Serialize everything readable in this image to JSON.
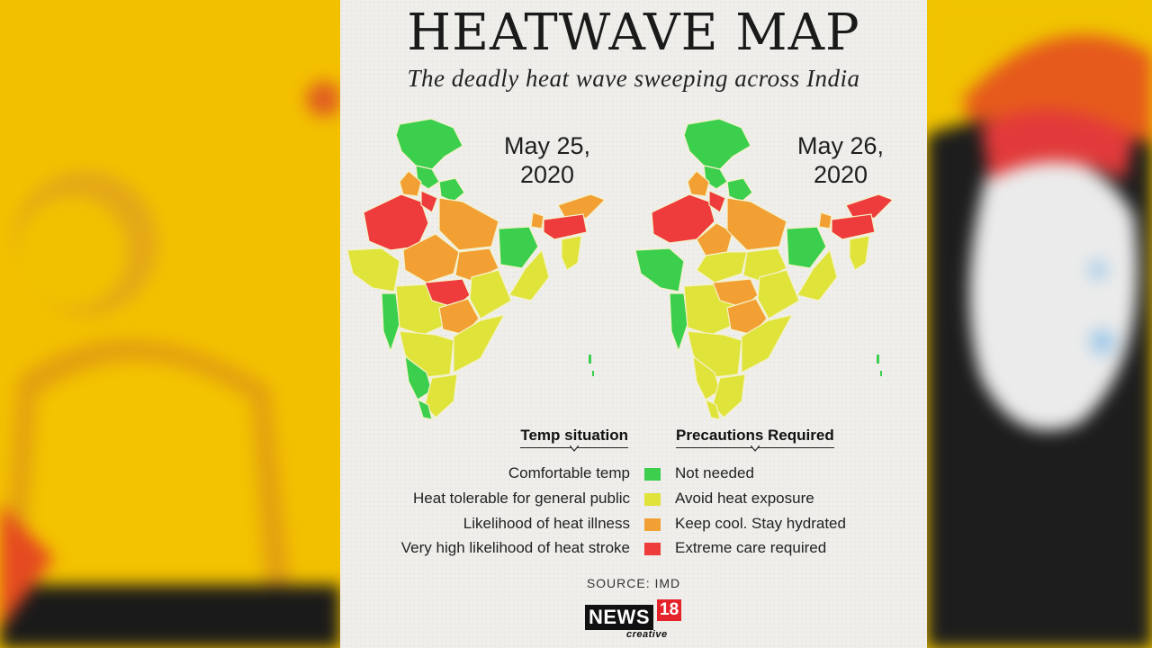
{
  "title": "HEATWAVE MAP",
  "subtitle": "The deadly heat wave sweeping across India",
  "maps": [
    {
      "date_line1": "May 25,",
      "date_line2": "2020"
    },
    {
      "date_line1": "May 26,",
      "date_line2": "2020"
    }
  ],
  "legend": {
    "left_header": "Temp situation",
    "right_header": "Precautions Required",
    "rows": [
      {
        "situation": "Comfortable temp",
        "precaution": "Not needed",
        "color": "#3ccf4e"
      },
      {
        "situation": "Heat tolerable for general public",
        "precaution": "Avoid heat exposure",
        "color": "#dfe33a"
      },
      {
        "situation": "Likelihood of heat illness",
        "precaution": "Keep cool. Stay hydrated",
        "color": "#f2a033"
      },
      {
        "situation": "Very high likelihood of heat stroke",
        "precaution": "Extreme care required",
        "color": "#ee3b3b"
      }
    ]
  },
  "source": "SOURCE: IMD",
  "logo": {
    "news": "NEWS",
    "number": "18",
    "sub": "creative"
  }
}
